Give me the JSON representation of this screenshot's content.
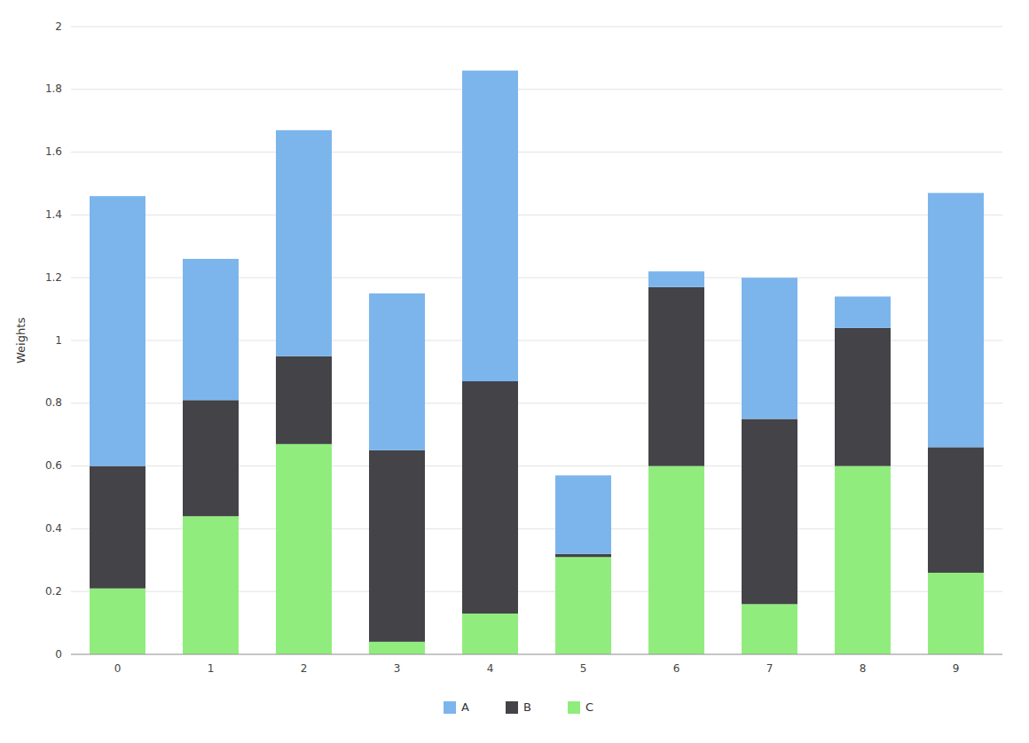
{
  "chart_data": {
    "type": "bar",
    "stacked": true,
    "ylabel": "Weights",
    "categories": [
      "0",
      "1",
      "2",
      "3",
      "4",
      "5",
      "6",
      "7",
      "8",
      "9"
    ],
    "series": [
      {
        "name": "C",
        "color": "#90ed7d",
        "values": [
          0.21,
          0.44,
          0.67,
          0.04,
          0.13,
          0.31,
          0.6,
          0.16,
          0.6,
          0.26
        ]
      },
      {
        "name": "B",
        "color": "#434348",
        "values": [
          0.39,
          0.37,
          0.28,
          0.61,
          0.74,
          0.01,
          0.57,
          0.59,
          0.44,
          0.4
        ]
      },
      {
        "name": "A",
        "color": "#7cb5ec",
        "values": [
          0.86,
          0.45,
          0.72,
          0.5,
          0.99,
          0.25,
          0.05,
          0.45,
          0.1,
          0.81
        ]
      }
    ],
    "ylim": [
      0,
      2.0
    ],
    "yticks": [
      0,
      0.2,
      0.4,
      0.6,
      0.8,
      1.0,
      1.2,
      1.4,
      1.6,
      1.8,
      2.0
    ],
    "grid": true,
    "legend": "bottom"
  }
}
